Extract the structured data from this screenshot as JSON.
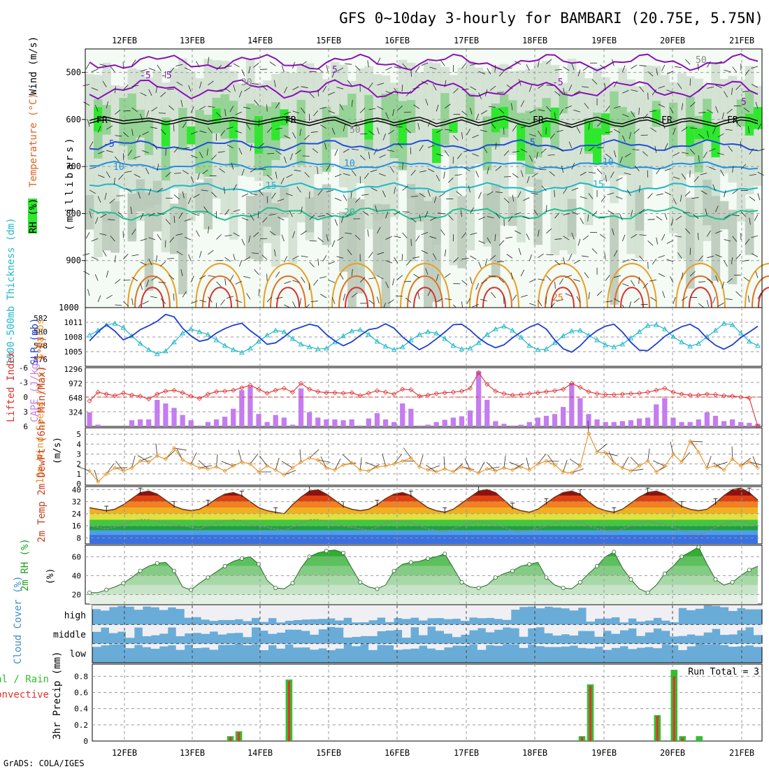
{
  "title": "GFS 0~10day 3-hourly for BAMBARI (20.75E, 5.75N)",
  "footer": "GrADS: COLA/IGES",
  "dates": [
    "12FEB",
    "13FEB",
    "14FEB",
    "15FEB",
    "16FEB",
    "17FEB",
    "18FEB",
    "19FEB",
    "20FEB",
    "21FEB"
  ],
  "colors": {
    "rh_green": "#2ee82e",
    "rh_mid": "#8fd08f",
    "rh_light": "#e6f3e6",
    "temp_purple": "#8a10b8",
    "temp_blue": "#1f4fd8",
    "slp_blue": "#1f3fd0",
    "thick_cyan": "#20b8c8",
    "li_red": "#e03030",
    "cape_violet": "#c47cf0",
    "wind_orange": "#e89830",
    "cloud_blue": "#6aacd8",
    "precip_green": "#30c030",
    "precip_red": "#e83030"
  },
  "chart_data": [
    {
      "type": "heatmap",
      "panel": "upper-air",
      "ylabel_parts": [
        "RH (%)",
        "Temperature (°C)",
        "Wind (m/s)"
      ],
      "ylabel_units": "(millibars)",
      "yticks": [
        "500",
        "600",
        "700",
        "800",
        "900"
      ],
      "ylim": [
        1000,
        450
      ],
      "contour_labels": [
        "-5",
        "-5",
        "-5",
        "5",
        "5",
        "FR",
        "FR",
        "FR",
        "FR",
        "FR",
        "-5",
        "-5",
        "10",
        "10",
        "10",
        "15",
        "15",
        "20",
        "25",
        "30",
        "50",
        "50"
      ],
      "freezing_level_mb": [
        605,
        600,
        598,
        602,
        606,
        604,
        602,
        600,
        603,
        608,
        605,
        600,
        598,
        603,
        607,
        604,
        601,
        599,
        602,
        606,
        608,
        604,
        600,
        597,
        602,
        606,
        610,
        605,
        600,
        598,
        605,
        612,
        608,
        603,
        600,
        604,
        610,
        606,
        601,
        598,
        604,
        612,
        608,
        602,
        598,
        604,
        610,
        606,
        600,
        596,
        602,
        608,
        612,
        606,
        600,
        603,
        609,
        614,
        608,
        602,
        598,
        604,
        610,
        612,
        606,
        600,
        598,
        604,
        612,
        608,
        602,
        600,
        604,
        608,
        612,
        606,
        602,
        598,
        600,
        606
      ],
      "isotherm_levels_c": [
        -5,
        5,
        10,
        15,
        20,
        25,
        30
      ]
    },
    {
      "type": "line",
      "panel": "thickness-slp",
      "ylabel_left": "1000-500mb Thickness (dm)",
      "ylabel_right": "SLP (mb)",
      "yticks_left": [
        "576",
        "578",
        "580",
        "582"
      ],
      "yticks_right": [
        "1005",
        "1008",
        "1011"
      ],
      "series": [
        {
          "name": "SLP (mb)",
          "values": [
            1007.2,
            1009.0,
            1010.5,
            1009.2,
            1007.4,
            1008.2,
            1009.5,
            1010.3,
            1011.2,
            1012.6,
            1012.1,
            1009.8,
            1008.2,
            1007.1,
            1007.5,
            1008.8,
            1009.7,
            1010.4,
            1010.8,
            1009.3,
            1008.0,
            1006.5,
            1006.8,
            1008.0,
            1009.4,
            1010.0,
            1010.6,
            1010.2,
            1008.5,
            1007.2,
            1006.2,
            1007.0,
            1008.3,
            1009.5,
            1009.8,
            1010.7,
            1009.8,
            1008.0,
            1006.6,
            1005.4,
            1006.3,
            1007.6,
            1009.0,
            1010.5,
            1010.6,
            1009.4,
            1007.8,
            1006.6,
            1005.8,
            1006.4,
            1007.8,
            1009.0,
            1010.0,
            1010.7,
            1009.6,
            1007.4,
            1005.6,
            1004.9,
            1006.2,
            1008.0,
            1009.3,
            1010.2,
            1010.6,
            1009.0,
            1006.9,
            1005.3,
            1005.2,
            1006.6,
            1008.1,
            1009.2,
            1010.1,
            1010.6,
            1009.6,
            1007.7,
            1006.3,
            1005.5,
            1006.4,
            1007.9,
            1009.0,
            1010.2
          ]
        },
        {
          "name": "1000-500mb Thickness (dm)",
          "values": [
            579.5,
            580.2,
            581.0,
            581.2,
            580.6,
            579.4,
            578.3,
            577.4,
            576.8,
            577.2,
            578.5,
            579.8,
            580.4,
            580.0,
            579.6,
            578.8,
            578.0,
            577.4,
            577.0,
            577.6,
            578.6,
            579.5,
            580.2,
            580.0,
            579.0,
            578.2,
            577.8,
            577.5,
            577.6,
            578.5,
            579.4,
            580.1,
            580.3,
            579.6,
            578.6,
            577.9,
            577.4,
            577.8,
            578.8,
            579.6,
            580.0,
            579.8,
            579.0,
            578.0,
            577.5,
            577.6,
            578.4,
            579.6,
            580.4,
            580.8,
            580.2,
            579.2,
            578.0,
            577.4,
            577.5,
            578.4,
            579.4,
            580.1,
            580.2,
            579.5,
            578.8,
            578.1,
            577.8,
            578.2,
            579.1,
            580.0,
            580.9,
            581.0,
            580.4,
            579.3,
            578.5,
            577.9,
            578.3,
            579.3,
            580.2,
            581.2,
            581.0,
            579.8,
            578.6,
            578.0
          ]
        }
      ]
    },
    {
      "type": "bar",
      "panel": "instability",
      "ylabel_left": "Lifted Index",
      "ylabel_right": "CAPE (J/kg)",
      "yticks_left": [
        "-6",
        "-3",
        "0",
        "3",
        "6"
      ],
      "yticks_right": [
        "324",
        "648",
        "972",
        "1296"
      ],
      "series": [
        {
          "name": "CAPE (J/kg)",
          "values": [
            320,
            40,
            0,
            0,
            0,
            140,
            160,
            160,
            600,
            520,
            420,
            260,
            140,
            20,
            100,
            160,
            220,
            400,
            820,
            900,
            280,
            100,
            260,
            200,
            40,
            860,
            320,
            200,
            160,
            160,
            140,
            160,
            20,
            180,
            300,
            160,
            100,
            520,
            400,
            20,
            40,
            100,
            150,
            200,
            230,
            360,
            1250,
            600,
            120,
            60,
            20,
            40,
            100,
            200,
            240,
            280,
            440,
            980,
            640,
            280,
            160,
            100,
            100,
            120,
            140,
            180,
            200,
            500,
            640,
            200,
            100,
            100,
            160,
            320,
            240,
            120,
            160,
            100,
            80,
            60
          ]
        },
        {
          "name": "Lifted Index",
          "values": [
            0.8,
            -1.0,
            -0.6,
            -0.3,
            -0.8,
            -0.4,
            -0.2,
            0.4,
            -0.6,
            -1.2,
            -1.4,
            -0.9,
            -0.2,
            0.3,
            -0.6,
            -1.1,
            -1.2,
            -1.4,
            -1.9,
            -2.4,
            -1.6,
            -0.8,
            -1.4,
            -1.8,
            -1.0,
            -2.8,
            -1.6,
            -1.1,
            -0.9,
            -0.9,
            -0.8,
            -0.9,
            -0.3,
            -0.8,
            -1.3,
            -1.0,
            -0.6,
            -1.6,
            -1.5,
            -0.2,
            -0.4,
            -0.7,
            -0.9,
            -1.0,
            -1.2,
            -1.8,
            -5.0,
            -2.6,
            -1.2,
            -0.7,
            -0.4,
            -0.5,
            -0.7,
            -0.9,
            -1.1,
            -1.3,
            -1.6,
            -2.8,
            -2.0,
            -1.1,
            -0.7,
            -0.5,
            -0.5,
            -0.6,
            -0.7,
            -0.8,
            -1.0,
            -1.4,
            -1.8,
            -1.0,
            -0.6,
            -0.4,
            -0.4,
            -0.6,
            -0.5,
            -0.3,
            -0.2,
            0.0,
            0.2,
            6.0
          ]
        }
      ]
    },
    {
      "type": "line",
      "panel": "wind10m",
      "ylabel": "10m Wind Speed (m/s) & Barbs",
      "yticks": [
        "0",
        "1",
        "2",
        "3",
        "4",
        "5"
      ],
      "ylim": [
        0,
        5.5
      ],
      "values": [
        1.3,
        0.2,
        1.0,
        1.6,
        1.3,
        1.6,
        2.3,
        2.2,
        2.8,
        2.5,
        3.6,
        2.4,
        2.0,
        1.6,
        1.5,
        1.7,
        1.3,
        1.8,
        2.2,
        2.0,
        1.2,
        1.8,
        1.4,
        0.9,
        1.6,
        2.2,
        2.6,
        2.4,
        1.6,
        1.4,
        1.9,
        2.1,
        1.4,
        1.3,
        1.7,
        1.8,
        2.0,
        2.3,
        2.6,
        1.7,
        1.4,
        1.2,
        1.5,
        1.2,
        1.7,
        1.4,
        1.1,
        1.5,
        1.3,
        1.6,
        1.4,
        1.7,
        1.4,
        2.0,
        2.3,
        1.9,
        1.2,
        1.1,
        1.8,
        5.1,
        3.2,
        3.1,
        2.1,
        1.6,
        1.3,
        1.8,
        2.3,
        1.2,
        1.8,
        3.0,
        2.2,
        4.3,
        3.2,
        1.6,
        1.8,
        1.4,
        2.5,
        1.8,
        2.2,
        1.6
      ]
    },
    {
      "type": "area",
      "panel": "temperature2m",
      "ylabel": "2m Temp 2m DewPt (6hr Min/Max) (°C)",
      "yticks": [
        "8",
        "16",
        "24",
        "32",
        "40"
      ],
      "ylim": [
        4,
        42
      ],
      "series": [
        {
          "name": "2m Temp",
          "values": [
            28,
            27,
            26,
            27,
            30,
            34,
            38,
            39,
            37,
            33,
            29,
            27,
            26,
            27,
            30,
            34,
            37,
            38,
            36,
            32,
            28,
            26,
            25,
            24,
            30,
            35,
            39,
            40,
            37,
            33,
            29,
            27,
            26,
            27,
            30,
            34,
            37,
            38,
            36,
            32,
            28,
            26,
            25,
            27,
            31,
            35,
            39,
            40,
            38,
            33,
            28,
            26,
            25,
            27,
            31,
            35,
            38,
            39,
            37,
            32,
            28,
            26,
            25,
            27,
            31,
            35,
            38,
            39,
            37,
            33,
            29,
            27,
            26,
            27,
            31,
            36,
            40,
            41,
            38,
            33
          ]
        },
        {
          "name": "2m DewPt",
          "values": [
            16,
            15,
            14,
            15,
            17,
            19,
            20,
            20,
            19,
            18,
            17,
            16,
            15,
            14,
            16,
            18,
            19,
            20,
            19,
            17,
            16,
            15,
            14,
            13,
            15,
            18,
            20,
            20,
            19,
            18,
            16,
            15,
            14,
            13,
            15,
            18,
            19,
            19,
            18,
            16,
            14,
            13,
            12,
            14,
            16,
            18,
            19,
            18,
            17,
            15,
            13,
            12,
            13,
            14,
            16,
            18,
            19,
            19,
            18,
            16,
            14,
            13,
            12,
            14,
            16,
            18,
            19,
            18,
            17,
            15,
            13,
            11,
            10,
            12,
            15,
            17,
            19,
            19,
            18,
            16
          ]
        }
      ]
    },
    {
      "type": "area",
      "panel": "rh2m",
      "ylabel": "2m RH (%)",
      "yticks": [
        "20",
        "40",
        "60"
      ],
      "ylim": [
        10,
        72
      ],
      "values": [
        22,
        22,
        25,
        28,
        32,
        38,
        45,
        50,
        53,
        54,
        45,
        28,
        25,
        32,
        38,
        44,
        50,
        55,
        58,
        60,
        52,
        35,
        27,
        26,
        32,
        48,
        60,
        64,
        66,
        67,
        64,
        48,
        33,
        28,
        26,
        30,
        45,
        52,
        54,
        55,
        58,
        60,
        63,
        48,
        33,
        28,
        27,
        30,
        38,
        42,
        45,
        50,
        52,
        54,
        38,
        30,
        27,
        26,
        33,
        42,
        50,
        60,
        65,
        48,
        36,
        26,
        22,
        30,
        42,
        50,
        60,
        65,
        70,
        52,
        36,
        30,
        33,
        40,
        46,
        50
      ]
    },
    {
      "type": "heatmap",
      "panel": "cloud",
      "ylabel": "Cloud Cover (%)",
      "rows": [
        "high",
        "middle",
        "low"
      ]
    },
    {
      "type": "bar",
      "panel": "precip",
      "ylabel": "3hr Precip (mm)",
      "legend": [
        "Total / Rain",
        "Convective"
      ],
      "annotation": "Run Total = 3",
      "yticks": [
        "0",
        "0.2",
        "0.4",
        "0.6",
        "0.8"
      ],
      "ylim": [
        0,
        0.95
      ],
      "series": [
        {
          "name": "Total",
          "values": [
            0,
            0,
            0,
            0,
            0,
            0,
            0,
            0,
            0,
            0,
            0,
            0,
            0,
            0,
            0,
            0,
            0.06,
            0.12,
            0,
            0,
            0,
            0,
            0,
            0.76,
            0,
            0,
            0,
            0,
            0,
            0,
            0,
            0,
            0,
            0,
            0,
            0,
            0,
            0,
            0,
            0,
            0,
            0,
            0,
            0,
            0,
            0,
            0,
            0,
            0,
            0,
            0,
            0,
            0,
            0,
            0,
            0,
            0,
            0,
            0.06,
            0.7,
            0,
            0,
            0,
            0,
            0,
            0,
            0,
            0.32,
            0,
            0.88,
            0.06,
            0,
            0.06,
            0,
            0,
            0,
            0,
            0,
            0,
            0
          ]
        },
        {
          "name": "Convective",
          "values": [
            0,
            0,
            0,
            0,
            0,
            0,
            0,
            0,
            0,
            0,
            0,
            0,
            0,
            0,
            0,
            0,
            0.05,
            0.11,
            0,
            0,
            0,
            0,
            0,
            0.74,
            0,
            0,
            0,
            0,
            0,
            0,
            0,
            0,
            0,
            0,
            0,
            0,
            0,
            0,
            0,
            0,
            0,
            0,
            0,
            0,
            0,
            0,
            0,
            0,
            0,
            0,
            0,
            0,
            0,
            0,
            0,
            0,
            0,
            0,
            0.05,
            0.68,
            0,
            0,
            0,
            0,
            0,
            0,
            0,
            0.31,
            0,
            0.8,
            0.04,
            0,
            0,
            0,
            0,
            0,
            0,
            0,
            0,
            0
          ]
        }
      ]
    }
  ]
}
